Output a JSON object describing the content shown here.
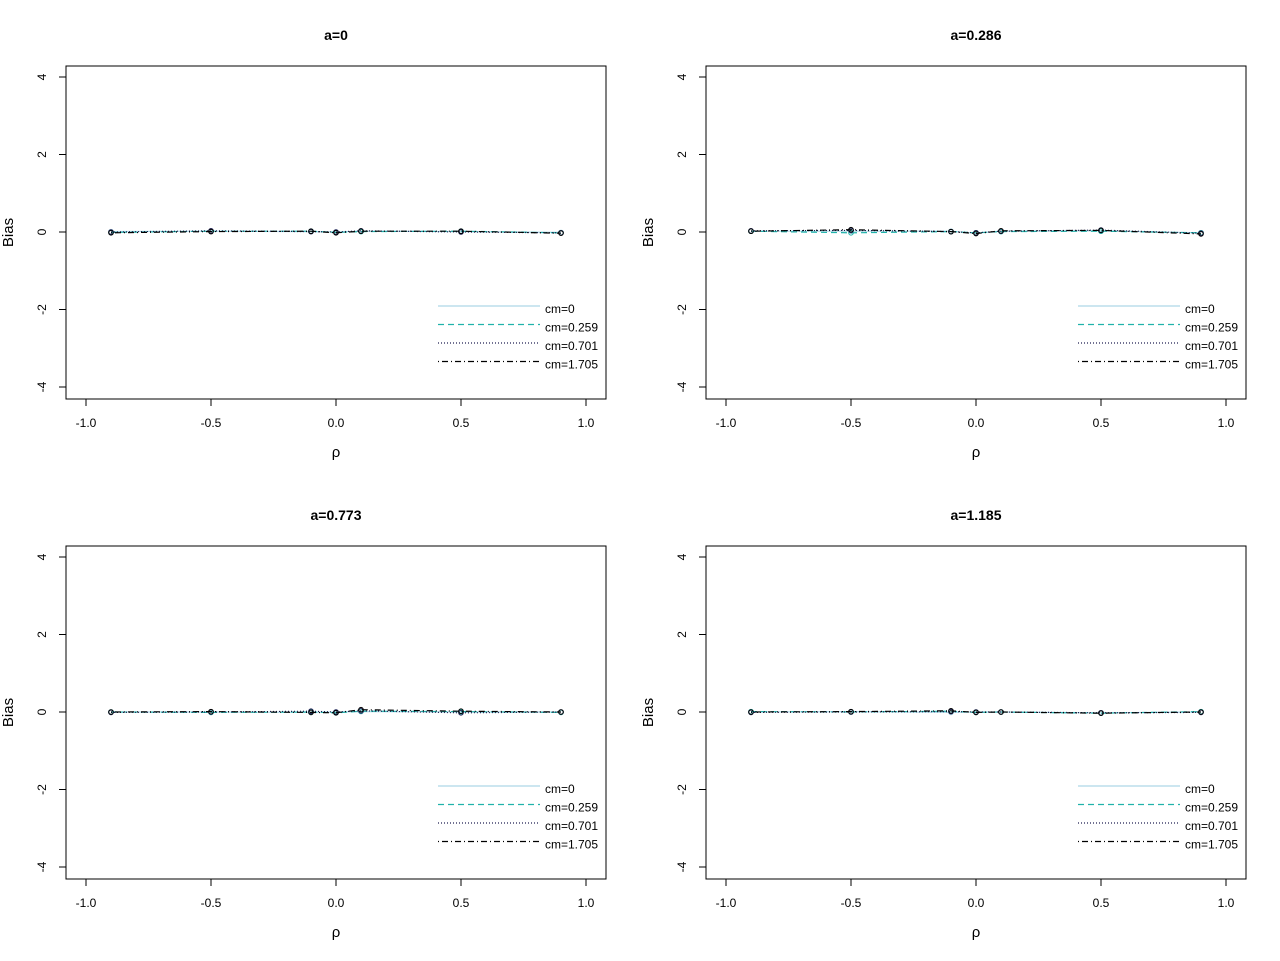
{
  "chart_data": [
    {
      "type": "line",
      "title": "a=0",
      "xlabel": "ρ",
      "ylabel": "Bias",
      "xlim": [
        -1.0,
        1.0
      ],
      "ylim": [
        -4,
        4
      ],
      "xticks": [
        -1.0,
        -0.5,
        0.0,
        0.5,
        1.0
      ],
      "xtick_labels": [
        "-1.0",
        "-0.5",
        "0.0",
        "0.5",
        "1.0"
      ],
      "yticks": [
        -4,
        -2,
        0,
        2,
        4
      ],
      "ytick_labels": [
        "-4",
        "-2",
        "0",
        "2",
        "4"
      ],
      "x": [
        -0.9,
        -0.5,
        -0.1,
        0.0,
        0.1,
        0.5,
        0.9
      ],
      "legend_position": "bottom-right",
      "series": [
        {
          "name": "cm=0",
          "color": "#add8e6",
          "linestyle": "solid",
          "values": [
            0.01,
            0.02,
            0.01,
            0.0,
            0.02,
            0.01,
            -0.01
          ]
        },
        {
          "name": "cm=0.259",
          "color": "#20b2aa",
          "linestyle": "dashed",
          "values": [
            -0.01,
            0.02,
            0.02,
            -0.01,
            0.01,
            0.02,
            -0.02
          ]
        },
        {
          "name": "cm=0.701",
          "color": "#1e1e50",
          "linestyle": "dotted",
          "values": [
            0.0,
            0.03,
            0.01,
            0.0,
            0.03,
            0.0,
            -0.02
          ]
        },
        {
          "name": "cm=1.705",
          "color": "#000000",
          "linestyle": "dotdash",
          "values": [
            -0.02,
            0.01,
            0.02,
            -0.02,
            0.02,
            0.02,
            -0.03
          ]
        }
      ]
    },
    {
      "type": "line",
      "title": "a=0.286",
      "xlabel": "ρ",
      "ylabel": "Bias",
      "xlim": [
        -1.0,
        1.0
      ],
      "ylim": [
        -4,
        4
      ],
      "xticks": [
        -1.0,
        -0.5,
        0.0,
        0.5,
        1.0
      ],
      "xtick_labels": [
        "-1.0",
        "-0.5",
        "0.0",
        "0.5",
        "1.0"
      ],
      "yticks": [
        -4,
        -2,
        0,
        2,
        4
      ],
      "ytick_labels": [
        "-4",
        "-2",
        "0",
        "2",
        "4"
      ],
      "x": [
        -0.9,
        -0.5,
        -0.1,
        0.0,
        0.1,
        0.5,
        0.9
      ],
      "legend_position": "bottom-right",
      "series": [
        {
          "name": "cm=0",
          "color": "#add8e6",
          "linestyle": "solid",
          "values": [
            0.02,
            0.02,
            0.02,
            -0.03,
            0.02,
            0.03,
            -0.02
          ]
        },
        {
          "name": "cm=0.259",
          "color": "#20b2aa",
          "linestyle": "dashed",
          "values": [
            0.02,
            -0.02,
            0.01,
            -0.02,
            0.01,
            0.02,
            -0.02
          ]
        },
        {
          "name": "cm=0.701",
          "color": "#1e1e50",
          "linestyle": "dotted",
          "values": [
            0.03,
            0.04,
            0.01,
            -0.02,
            0.02,
            0.05,
            -0.03
          ]
        },
        {
          "name": "cm=1.705",
          "color": "#000000",
          "linestyle": "dotdash",
          "values": [
            0.02,
            0.06,
            0.01,
            -0.04,
            0.03,
            0.04,
            -0.05
          ]
        }
      ]
    },
    {
      "type": "line",
      "title": "a=0.773",
      "xlabel": "ρ",
      "ylabel": "Bias",
      "xlim": [
        -1.0,
        1.0
      ],
      "ylim": [
        -4,
        4
      ],
      "xticks": [
        -1.0,
        -0.5,
        0.0,
        0.5,
        1.0
      ],
      "xtick_labels": [
        "-1.0",
        "-0.5",
        "0.0",
        "0.5",
        "1.0"
      ],
      "yticks": [
        -4,
        -2,
        0,
        2,
        4
      ],
      "ytick_labels": [
        "-4",
        "-2",
        "0",
        "2",
        "4"
      ],
      "x": [
        -0.9,
        -0.5,
        -0.1,
        0.0,
        0.1,
        0.5,
        0.9
      ],
      "legend_position": "bottom-right",
      "series": [
        {
          "name": "cm=0",
          "color": "#add8e6",
          "linestyle": "solid",
          "values": [
            0.0,
            0.0,
            -0.01,
            0.0,
            0.01,
            0.0,
            0.0
          ]
        },
        {
          "name": "cm=0.259",
          "color": "#20b2aa",
          "linestyle": "dashed",
          "values": [
            0.0,
            -0.01,
            0.0,
            -0.02,
            0.02,
            0.01,
            -0.01
          ]
        },
        {
          "name": "cm=0.701",
          "color": "#1e1e50",
          "linestyle": "dotted",
          "values": [
            -0.01,
            0.0,
            0.02,
            0.0,
            0.03,
            -0.02,
            0.0
          ]
        },
        {
          "name": "cm=1.705",
          "color": "#000000",
          "linestyle": "dotdash",
          "values": [
            0.0,
            0.01,
            -0.01,
            -0.02,
            0.06,
            0.02,
            0.0
          ]
        }
      ]
    },
    {
      "type": "line",
      "title": "a=1.185",
      "xlabel": "ρ",
      "ylabel": "Bias",
      "xlim": [
        -1.0,
        1.0
      ],
      "ylim": [
        -4,
        4
      ],
      "xticks": [
        -1.0,
        -0.5,
        0.0,
        0.5,
        1.0
      ],
      "xtick_labels": [
        "-1.0",
        "-0.5",
        "0.0",
        "0.5",
        "1.0"
      ],
      "yticks": [
        -4,
        -2,
        0,
        2,
        4
      ],
      "ytick_labels": [
        "-4",
        "-2",
        "0",
        "2",
        "4"
      ],
      "x": [
        -0.9,
        -0.5,
        -0.1,
        0.0,
        0.1,
        0.5,
        0.9
      ],
      "legend_position": "bottom-right",
      "series": [
        {
          "name": "cm=0",
          "color": "#add8e6",
          "linestyle": "solid",
          "values": [
            0.0,
            0.01,
            -0.01,
            0.0,
            0.0,
            -0.02,
            0.0
          ]
        },
        {
          "name": "cm=0.259",
          "color": "#20b2aa",
          "linestyle": "dashed",
          "values": [
            0.01,
            0.0,
            0.02,
            -0.01,
            0.0,
            -0.03,
            0.01
          ]
        },
        {
          "name": "cm=0.701",
          "color": "#1e1e50",
          "linestyle": "dotted",
          "values": [
            -0.01,
            0.0,
            0.01,
            0.0,
            0.0,
            -0.02,
            -0.01
          ]
        },
        {
          "name": "cm=1.705",
          "color": "#000000",
          "linestyle": "dotdash",
          "values": [
            0.0,
            0.01,
            0.03,
            -0.01,
            0.0,
            -0.03,
            0.0
          ]
        }
      ]
    }
  ]
}
